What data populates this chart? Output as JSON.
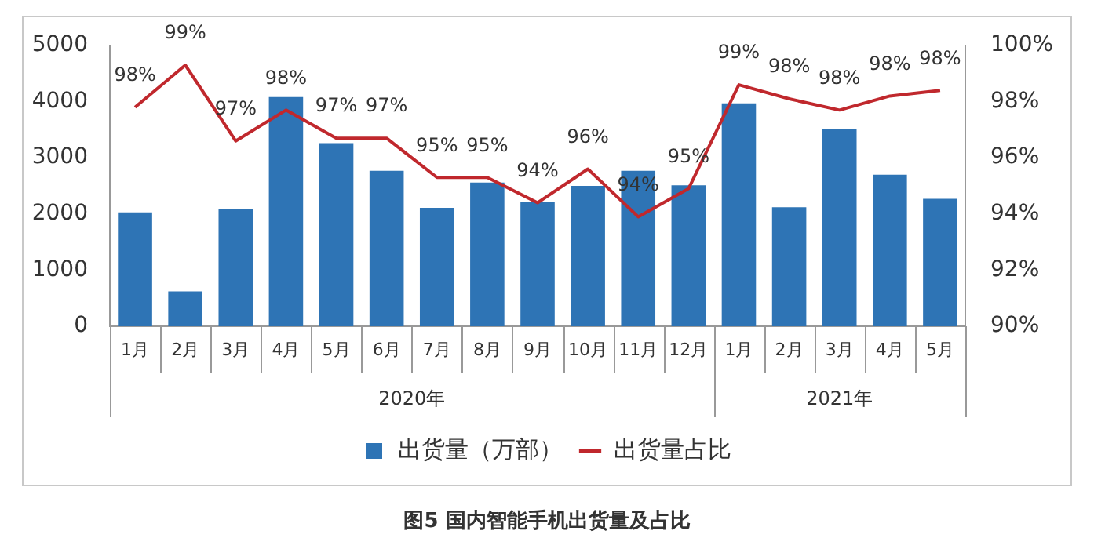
{
  "chart_data": {
    "type": "bar",
    "title": "图5  国内智能手机出货量及占比",
    "categories": [
      "1月",
      "2月",
      "3月",
      "4月",
      "5月",
      "6月",
      "7月",
      "8月",
      "9月",
      "10月",
      "11月",
      "12月",
      "1月",
      "2月",
      "3月",
      "4月",
      "5月"
    ],
    "series": [
      {
        "name": "出货量（万部）",
        "color": "#2e74b5",
        "values": [
          2030,
          620,
          2090,
          4080,
          3260,
          2770,
          2110,
          2560,
          2210,
          2500,
          2770,
          2510,
          3970,
          2120,
          3520,
          2700,
          2270
        ]
      },
      {
        "name": "出货量占比",
        "type": "line",
        "axis": "y2",
        "color": "#c0282d",
        "marker": "none",
        "values": [
          97.8,
          99.3,
          96.6,
          97.7,
          96.7,
          96.7,
          95.3,
          95.3,
          94.4,
          95.6,
          93.9,
          94.9,
          98.6,
          98.1,
          97.7,
          98.2,
          98.4
        ],
        "value_labels": [
          "98%",
          "99%",
          "97%",
          "98%",
          "97%",
          "97%",
          "95%",
          "95%",
          "94%",
          "96%",
          "94%",
          "95%",
          "99%",
          "98%",
          "98%",
          "98%",
          "98%"
        ]
      }
    ],
    "ylim": [
      0,
      5000
    ],
    "yticks": [
      0,
      1000,
      2000,
      3000,
      4000,
      5000
    ],
    "y2lim": [
      90,
      100
    ],
    "y2ticks": [
      {
        "value": 90,
        "label": "90%"
      },
      {
        "value": 92,
        "label": "92%"
      },
      {
        "value": 94,
        "label": "94%"
      },
      {
        "value": 96,
        "label": "96%"
      },
      {
        "value": 98,
        "label": "98%"
      },
      {
        "value": 100,
        "label": "100%"
      }
    ],
    "annotations": [
      "2020年",
      "2021年"
    ],
    "grid": false,
    "legend": "bottom"
  }
}
